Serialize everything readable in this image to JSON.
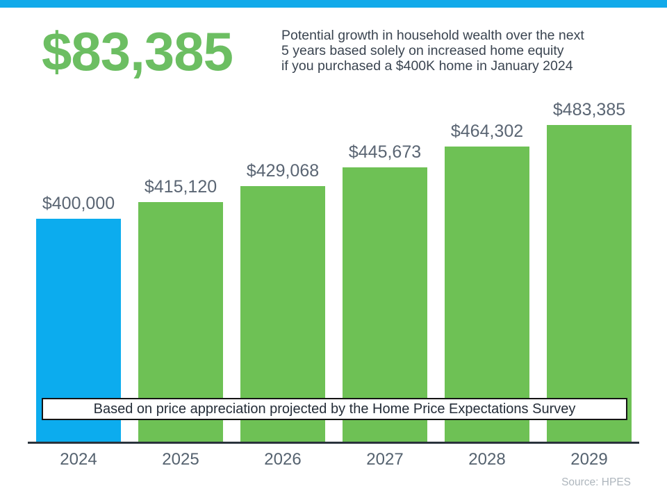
{
  "header": {
    "headline": "$83,385",
    "description_lines": [
      "Potential growth in household wealth over the next",
      "5 years based solely on increased home equity",
      "if you purchased a $400K home in January 2024"
    ]
  },
  "chart_data": {
    "type": "bar",
    "title": "",
    "xlabel": "",
    "ylabel": "",
    "categories": [
      "2024",
      "2025",
      "2026",
      "2027",
      "2028",
      "2029"
    ],
    "values": [
      400000,
      415120,
      429068,
      445673,
      464302,
      483385
    ],
    "value_labels": [
      "$400,000",
      "$415,120",
      "$429,068",
      "$445,673",
      "$464,302",
      "$483,385"
    ],
    "highlight_index": 0,
    "highlight_color": "#0cacee",
    "bar_color": "#6ec155",
    "grid": false,
    "legend": false,
    "ylim": [
      201000,
      483385
    ]
  },
  "banner": {
    "text": "Based on price appreciation projected by the Home Price Expectations Survey"
  },
  "footer": {
    "source": "Source: HPES"
  },
  "colors": {
    "top_strip": "#12aaea",
    "headline_green": "#6cbe62",
    "label_gray": "#5a6573",
    "axis_dark": "#2a333c"
  }
}
